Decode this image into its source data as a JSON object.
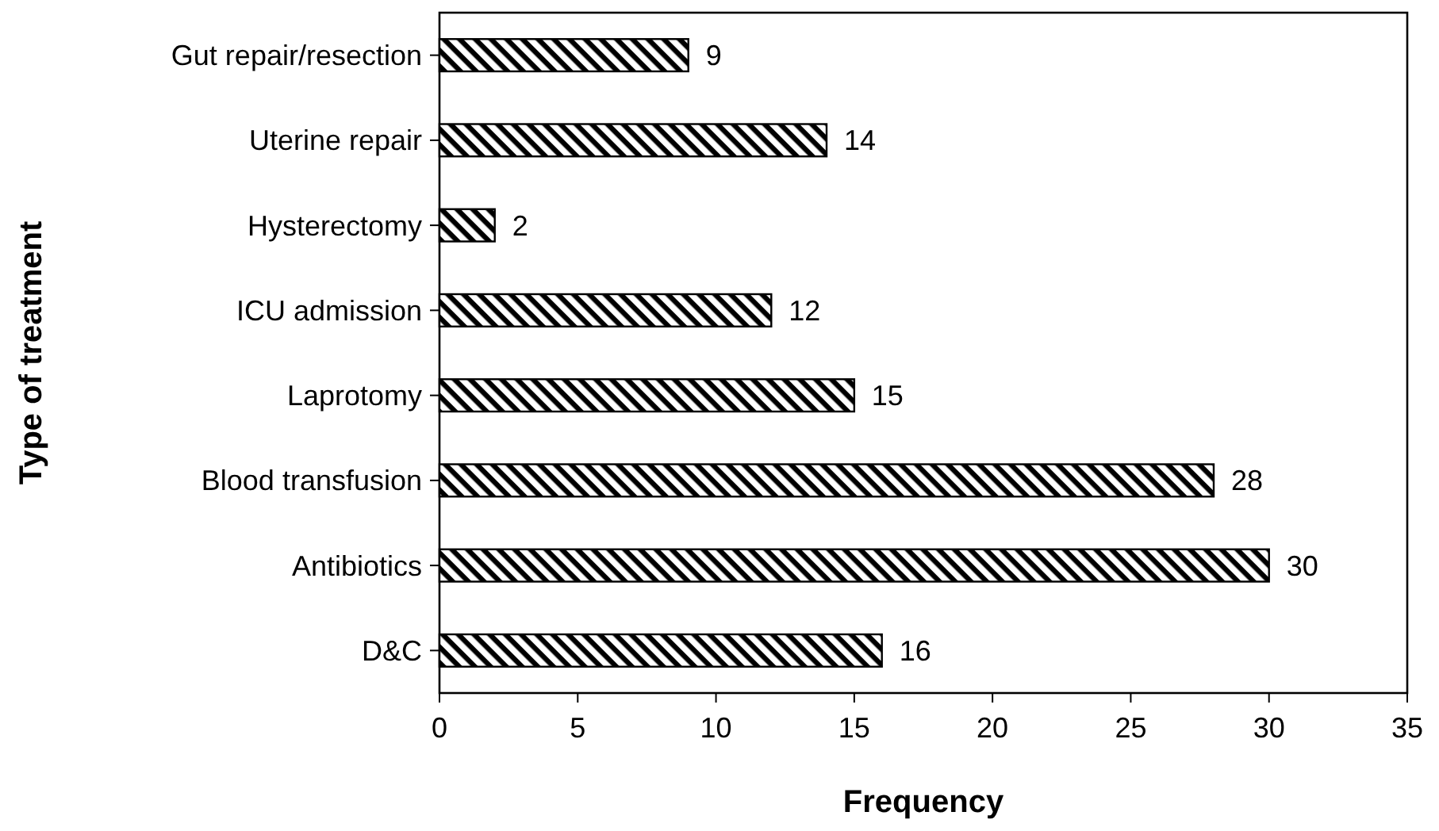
{
  "chart_data": {
    "type": "bar",
    "orientation": "horizontal",
    "xlabel": "Frequency",
    "ylabel": "Type of treatment",
    "categories": [
      "Gut repair/resection",
      "Uterine repair",
      "Hysterectomy",
      "ICU admission",
      "Laprotomy",
      "Blood transfusion",
      "Antibiotics",
      "D&C"
    ],
    "values": [
      9,
      14,
      2,
      12,
      15,
      28,
      30,
      16
    ],
    "color": "#000000",
    "xlim": [
      0,
      35
    ],
    "xticks": [
      0,
      5,
      10,
      15,
      20,
      25,
      30,
      35
    ],
    "grid": false,
    "data_labels": true
  }
}
